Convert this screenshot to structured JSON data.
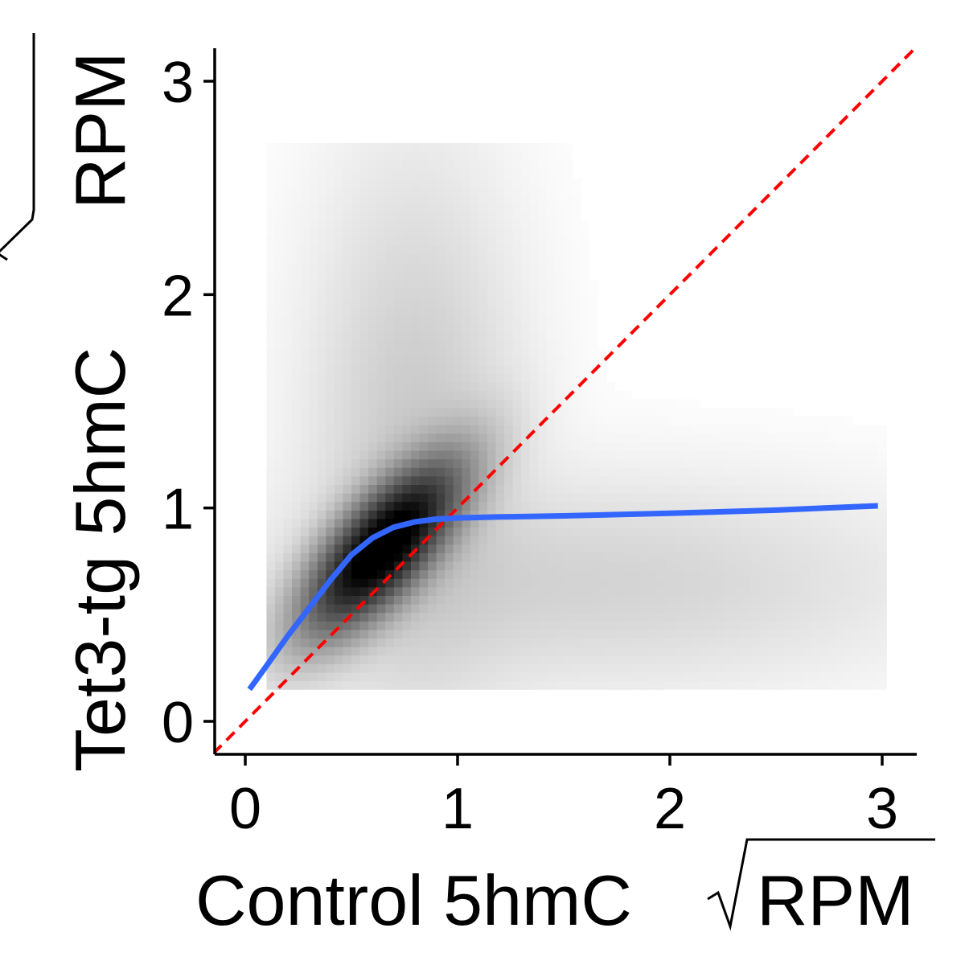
{
  "chart_data": {
    "type": "heatmap",
    "title": "",
    "xlabel": "Control 5hmC",
    "ylabel": "Tet3-tg 5hmC",
    "axis_unit": "RPM",
    "axis_unit_prefix": "√",
    "xlim": [
      -0.15,
      3.15
    ],
    "ylim": [
      -0.15,
      3.15
    ],
    "x_ticks": [
      0,
      1,
      2,
      3
    ],
    "y_ticks": [
      0,
      1,
      2,
      3
    ],
    "x_tick_labels": [
      "0",
      "1",
      "2",
      "3"
    ],
    "y_tick_labels": [
      "0",
      "1",
      "2",
      "3"
    ],
    "grid": false,
    "legend": "none",
    "density": {
      "description_source": "2D density of points, darkest near the diagonal",
      "peak": {
        "x": 0.65,
        "y": 0.82
      },
      "main_spread": {
        "sx": 0.22,
        "sy": 0.24,
        "rho": 0.72
      },
      "extent_x": [
        0.1,
        3.0
      ],
      "extent_y": [
        0.15,
        2.7
      ],
      "color_low": "#ffffff",
      "color_high": "#000000"
    },
    "series": [
      {
        "type": "line",
        "style": "dashed",
        "color": "#ff0000",
        "x": [
          -0.15,
          3.15
        ],
        "y": [
          -0.15,
          3.15
        ]
      },
      {
        "type": "line",
        "style": "solid",
        "color": "#3366ff",
        "x": [
          0.02,
          0.1,
          0.2,
          0.3,
          0.4,
          0.5,
          0.6,
          0.7,
          0.8,
          0.9,
          1.0,
          1.2,
          1.5,
          2.0,
          2.5,
          2.98
        ],
        "y": [
          0.15,
          0.26,
          0.4,
          0.53,
          0.66,
          0.78,
          0.86,
          0.91,
          0.935,
          0.948,
          0.953,
          0.958,
          0.963,
          0.975,
          0.99,
          1.01
        ]
      }
    ]
  }
}
